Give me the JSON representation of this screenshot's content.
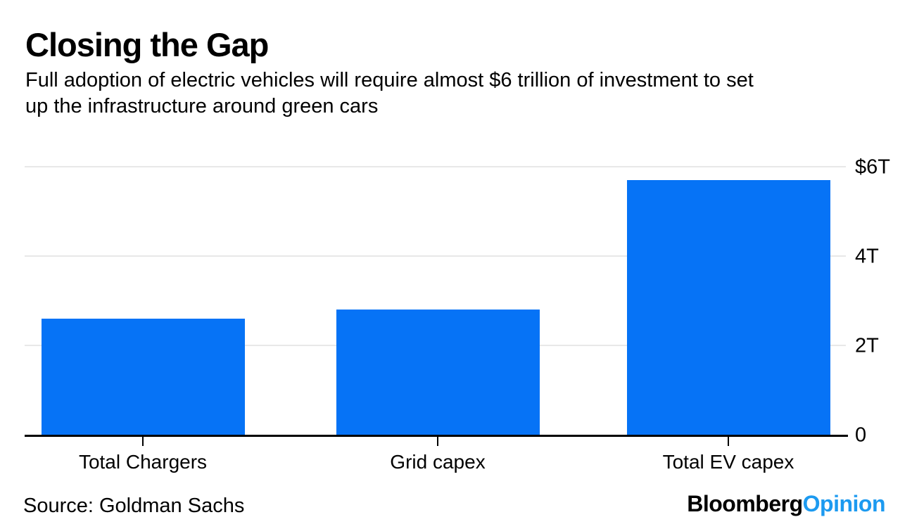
{
  "chart_data": {
    "type": "bar",
    "title": "Closing the Gap",
    "subtitle": "Full adoption of electric vehicles will require almost $6 trillion of investment to set up the infrastructure around green cars",
    "subtitle_lines": [
      "Full adoption of electric vehicles will require almost $6 trillion of investment to set",
      "up the infrastructure around green cars"
    ],
    "categories": [
      "Total Chargers",
      "Grid capex",
      "Total EV capex"
    ],
    "values": [
      2.6,
      2.8,
      5.7
    ],
    "unit": "USD trillions",
    "ylim": [
      0,
      6
    ],
    "yticks": [
      {
        "value": 0,
        "label": "0"
      },
      {
        "value": 2,
        "label": "2T"
      },
      {
        "value": 4,
        "label": "4T"
      },
      {
        "value": 6,
        "label": "$6T"
      }
    ],
    "legend": "none",
    "grid": "horizontal gridlines, value labels on right side",
    "bar_color": "#0673F6"
  },
  "footer": {
    "source": "Source: Goldman Sachs",
    "logo_bloomberg": "Bloomberg",
    "logo_opinion": "Opinion"
  },
  "colors": {
    "bar_blue": "#0673F6",
    "opinion_blue": "#1C9AF0",
    "gridline_gray": "#E8E8E8",
    "axis_black": "#000000",
    "text_black": "#000000",
    "background": "#FFFFFF"
  }
}
